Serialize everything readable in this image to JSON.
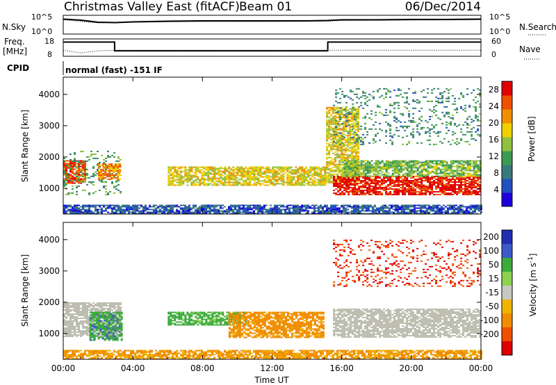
{
  "title": {
    "station": "Christmas Valley East (fitACF)",
    "beam": "Beam 01",
    "date": "06/Dec/2014"
  },
  "top_panels": {
    "nsky_label": "N.Sky",
    "nsearch_label": "N.Search",
    "nsky_ticks": [
      "10^5",
      "10^0"
    ],
    "nsearch_ticks": [
      "10^5",
      "10^0"
    ],
    "freq_label_1": "Freq.",
    "freq_label_2": "[MHz]",
    "freq_ticks": [
      "18",
      "8"
    ],
    "nave_label": "Nave",
    "nave_ticks": [
      "60",
      "0"
    ],
    "cpid_label": "CPID",
    "cpid_text": "normal (fast) -151 IF"
  },
  "colors": {
    "power_scale": [
      "#1e00dc",
      "#2350c0",
      "#3a7a7a",
      "#3a9a50",
      "#90c040",
      "#f0d000",
      "#f09000",
      "#f05000",
      "#e00000"
    ],
    "velocity_scale": [
      "#1f2fb0",
      "#3c5ac8",
      "#3caa3c",
      "#8cd250",
      "#c8c8c0",
      "#f0b400",
      "#f08c00",
      "#f05000",
      "#dc0000"
    ],
    "ground_scatter": "#bdbdb0"
  },
  "chart_data": [
    {
      "type": "line",
      "panel": "noise",
      "x_range_hours": [
        0,
        24
      ],
      "ylim_log10": [
        0,
        5
      ],
      "series": [
        {
          "name": "N.Sky",
          "x": [
            0,
            1,
            2,
            3,
            4,
            6,
            8,
            10,
            12,
            14,
            15.2,
            16,
            18,
            20,
            22,
            24
          ],
          "y_log10": [
            4.1,
            3.8,
            3.2,
            3.1,
            3.3,
            3.5,
            3.6,
            3.6,
            3.6,
            3.6,
            3.7,
            3.9,
            3.9,
            4.0,
            4.0,
            4.1
          ]
        },
        {
          "name": "N.Search",
          "x": [
            0,
            2,
            4,
            8,
            12,
            15.2,
            16,
            20,
            24
          ],
          "y_log10": [
            3.9,
            3.0,
            3.2,
            3.4,
            3.4,
            3.5,
            3.7,
            3.8,
            3.9
          ]
        }
      ]
    },
    {
      "type": "line",
      "panel": "frequency_nave",
      "x_range_hours": [
        0,
        24
      ],
      "series": [
        {
          "name": "Freq.",
          "axis": "left",
          "ylim": [
            8,
            18
          ],
          "x": [
            0,
            2.95,
            2.95,
            15.2,
            15.2,
            24
          ],
          "y": [
            16.5,
            16.5,
            11.0,
            11.0,
            16.5,
            16.5
          ]
        },
        {
          "name": "Nave",
          "axis": "right",
          "ylim": [
            0,
            60
          ],
          "x": [
            0,
            1,
            2,
            3,
            6,
            9,
            12,
            15,
            18,
            21,
            24
          ],
          "y": [
            20,
            10,
            18,
            20,
            20,
            20,
            20,
            20,
            20,
            20,
            20
          ]
        }
      ]
    },
    {
      "type": "heatmap",
      "panel": "power",
      "xlabel": "",
      "ylabel": "Slant Range [km]",
      "x_range_hours": [
        0,
        24
      ],
      "ylim": [
        180,
        4550
      ],
      "yticks": [
        1000,
        2000,
        3000,
        4000
      ],
      "colorbar_label": "Power [dB]",
      "colorbar_ticks": [
        4,
        8,
        12,
        16,
        20,
        24,
        28
      ],
      "colorbar_range": [
        0,
        30
      ],
      "regions": [
        {
          "name": "early-evening",
          "t": [
            0.0,
            1.2
          ],
          "r": [
            1150,
            1900
          ],
          "value": 26
        },
        {
          "name": "early-diffuse",
          "t": [
            0.0,
            3.3
          ],
          "r": [
            800,
            2200
          ],
          "value": 12
        },
        {
          "name": "near-03UT-blob",
          "t": [
            2.0,
            3.3
          ],
          "r": [
            1300,
            1800
          ],
          "value": 22
        },
        {
          "name": "near-range-band",
          "t": [
            0.0,
            24.0
          ],
          "r": [
            200,
            480
          ],
          "value": 6
        },
        {
          "name": "day-band",
          "t": [
            6.0,
            15.0
          ],
          "r": [
            1100,
            1700
          ],
          "value": 18
        },
        {
          "name": "dusk-hook",
          "t": [
            15.1,
            17.0
          ],
          "r": [
            1200,
            3600
          ],
          "value": 18
        },
        {
          "name": "night-strong",
          "t": [
            15.5,
            24.0
          ],
          "r": [
            800,
            1400
          ],
          "value": 28
        },
        {
          "name": "night-upper",
          "t": [
            16.0,
            24.0
          ],
          "r": [
            1400,
            1900
          ],
          "value": 14
        },
        {
          "name": "far-sparse",
          "t": [
            15.5,
            24.0
          ],
          "r": [
            2400,
            4200
          ],
          "value": 10
        }
      ]
    },
    {
      "type": "heatmap",
      "panel": "velocity",
      "xlabel": "Time UT",
      "ylabel": "Slant Range [km]",
      "x_range_hours": [
        0,
        24
      ],
      "ylim": [
        180,
        4550
      ],
      "yticks": [
        1000,
        2000,
        3000,
        4000
      ],
      "xticks": [
        "00:00",
        "04:00",
        "08:00",
        "12:00",
        "16:00",
        "20:00",
        "00:00"
      ],
      "colorbar_label": "Velocity [m s^-1]",
      "colorbar_ticks": [
        "200",
        "100",
        "50",
        "15",
        "-15",
        "-50",
        "-100",
        "-200"
      ],
      "regions": [
        {
          "name": "early-ground",
          "t": [
            0.0,
            3.3
          ],
          "r": [
            900,
            2000
          ],
          "value": "ground"
        },
        {
          "name": "early-green",
          "t": [
            1.5,
            3.3
          ],
          "r": [
            800,
            1700
          ],
          "value": 60
        },
        {
          "name": "near-range-band",
          "t": [
            0.0,
            24.0
          ],
          "r": [
            200,
            480
          ],
          "value": -40
        },
        {
          "name": "day-green",
          "t": [
            6.0,
            10.5
          ],
          "r": [
            1300,
            1700
          ],
          "value": 50
        },
        {
          "name": "day-orange",
          "t": [
            9.5,
            15.0
          ],
          "r": [
            900,
            1700
          ],
          "value": -50
        },
        {
          "name": "night-ground",
          "t": [
            15.5,
            24.0
          ],
          "r": [
            900,
            1800
          ],
          "value": "ground"
        },
        {
          "name": "far-red",
          "t": [
            15.5,
            24.0
          ],
          "r": [
            2500,
            4000
          ],
          "value": -150
        }
      ]
    }
  ]
}
